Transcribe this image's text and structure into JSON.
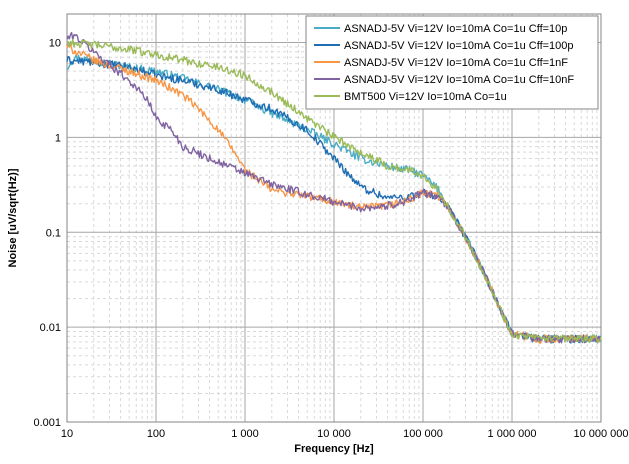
{
  "chart_data": {
    "type": "line",
    "title": "",
    "xlabel": "Frequency [Hz]",
    "ylabel": "Noise [uV/sqrt(Hz)]",
    "x_scale": "log",
    "y_scale": "log",
    "xlim": [
      10,
      10000000
    ],
    "ylim": [
      0.001,
      20
    ],
    "x_ticks": [
      10,
      100,
      1000,
      10000,
      100000,
      1000000,
      10000000
    ],
    "x_tick_labels": [
      "10",
      "100",
      "1 000",
      "10 000",
      "100 000",
      "1 000 000",
      "10 000 000"
    ],
    "y_ticks": [
      0.001,
      0.01,
      0.1,
      1,
      10
    ],
    "y_tick_labels": [
      "0.001",
      "0.01",
      "0.1",
      "1",
      "10"
    ],
    "grid": true,
    "legend_position": "top-right",
    "series": [
      {
        "name": "ASNADJ-5V Vi=12V Io=10mA Co=1u Cff=10p",
        "color": "#4bacc6",
        "x": [
          10,
          12,
          20,
          50,
          100,
          200,
          500,
          1000,
          2000,
          5000,
          10000,
          20000,
          40000,
          70000,
          100000,
          150000,
          200000,
          300000,
          500000,
          700000,
          1000000,
          2000000,
          5000000,
          10000000
        ],
        "y": [
          5.5,
          7.0,
          6.5,
          5.5,
          5.0,
          4.2,
          3.2,
          2.5,
          1.8,
          1.2,
          0.85,
          0.6,
          0.5,
          0.45,
          0.4,
          0.28,
          0.17,
          0.09,
          0.035,
          0.017,
          0.0085,
          0.0075,
          0.0075,
          0.0075
        ]
      },
      {
        "name": "ASNADJ-5V Vi=12V Io=10mA Co=1u Cff=100p",
        "color": "#1f6db3",
        "x": [
          10,
          20,
          50,
          100,
          200,
          500,
          1000,
          2000,
          5000,
          10000,
          20000,
          40000,
          70000,
          100000,
          150000,
          200000,
          300000,
          500000,
          700000,
          1000000,
          2000000,
          5000000,
          10000000
        ],
        "y": [
          6.5,
          6.2,
          5.5,
          4.5,
          4.0,
          3.2,
          2.5,
          2.0,
          1.2,
          0.6,
          0.3,
          0.23,
          0.24,
          0.26,
          0.24,
          0.17,
          0.09,
          0.035,
          0.017,
          0.0085,
          0.0075,
          0.0075,
          0.0075
        ]
      },
      {
        "name": "ASNADJ-5V Vi=12V Io=10mA Co=1u Cff=1nF",
        "color": "#f79646",
        "x": [
          10,
          20,
          50,
          100,
          200,
          300,
          500,
          800,
          1000,
          2000,
          5000,
          10000,
          20000,
          40000,
          70000,
          100000,
          150000,
          200000,
          300000,
          500000,
          700000,
          1000000,
          2000000,
          5000000,
          10000000
        ],
        "y": [
          9.0,
          6.5,
          5.0,
          4.0,
          2.8,
          2.0,
          1.2,
          0.65,
          0.45,
          0.28,
          0.24,
          0.21,
          0.18,
          0.19,
          0.22,
          0.26,
          0.24,
          0.17,
          0.09,
          0.035,
          0.017,
          0.0085,
          0.0075,
          0.0075,
          0.0075
        ]
      },
      {
        "name": "ASNADJ-5V Vi=12V Io=10mA Co=1u Cff=10nF",
        "color": "#8064a2",
        "x": [
          10,
          12,
          20,
          50,
          80,
          100,
          150,
          200,
          500,
          1000,
          2000,
          5000,
          10000,
          20000,
          40000,
          70000,
          100000,
          150000,
          200000,
          300000,
          500000,
          700000,
          1000000,
          2000000,
          5000000,
          10000000
        ],
        "y": [
          11.0,
          12.0,
          8.0,
          4.0,
          2.5,
          1.6,
          1.2,
          0.8,
          0.55,
          0.42,
          0.32,
          0.25,
          0.21,
          0.18,
          0.19,
          0.22,
          0.26,
          0.24,
          0.17,
          0.09,
          0.035,
          0.017,
          0.0085,
          0.0075,
          0.0075,
          0.0075
        ]
      },
      {
        "name": "BMT500 Vi=12V Io=10mA Co=1u",
        "color": "#9bbb59",
        "x": [
          10,
          20,
          50,
          100,
          200,
          500,
          1000,
          2000,
          5000,
          10000,
          20000,
          40000,
          70000,
          100000,
          150000,
          200000,
          300000,
          500000,
          700000,
          1000000,
          2000000,
          5000000,
          10000000
        ],
        "y": [
          10.0,
          9.5,
          8.5,
          7.5,
          6.5,
          5.5,
          4.5,
          3.0,
          1.6,
          1.0,
          0.7,
          0.5,
          0.45,
          0.4,
          0.28,
          0.17,
          0.09,
          0.035,
          0.017,
          0.0085,
          0.0075,
          0.0075,
          0.0075
        ]
      }
    ]
  }
}
